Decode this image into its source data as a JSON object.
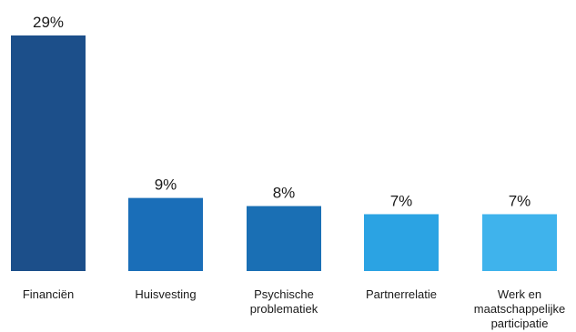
{
  "chart_data": {
    "type": "bar",
    "categories": [
      [
        "Financiën"
      ],
      [
        "Huisvesting"
      ],
      [
        "Psychische",
        "problematiek"
      ],
      [
        "Partnerrelatie"
      ],
      [
        "Werk en",
        "maatschappelijke",
        "participatie"
      ]
    ],
    "values": [
      29,
      9,
      8,
      7,
      7
    ],
    "value_labels": [
      "29%",
      "9%",
      "8%",
      "7%",
      "7%"
    ],
    "unit": "%",
    "colors": [
      "#1c4f8a",
      "#1a6eb8",
      "#1a6fb4",
      "#2ba3e3",
      "#3fb3ec"
    ],
    "ylim": [
      0,
      29
    ],
    "grid": false,
    "legend": "none"
  }
}
